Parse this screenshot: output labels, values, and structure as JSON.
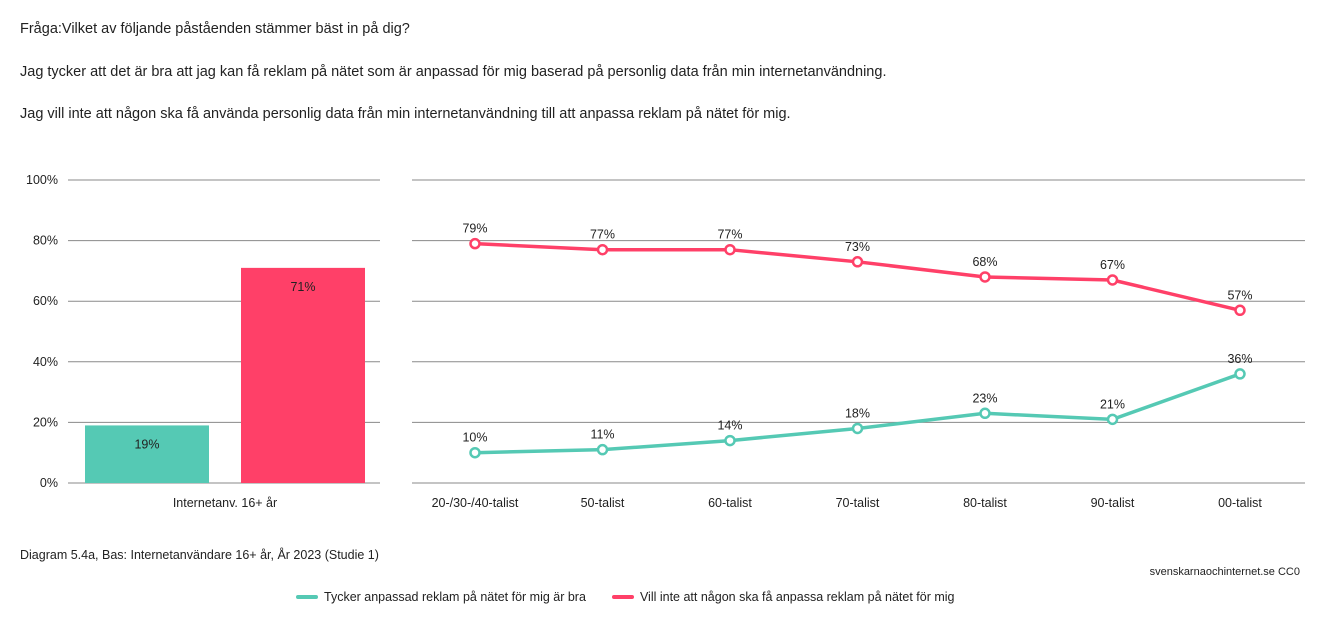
{
  "header": {
    "question": "Fråga:Vilket av följande påståenden stämmer bäst in på dig?",
    "statement1": "Jag tycker att det är bra att jag kan få reklam på nätet som är anpassad för mig baserad på personlig data från min internetanvändning.",
    "statement2": "Jag vill inte att någon ska få använda personlig data från min internetanvändning till att anpassa reklam på nätet för mig."
  },
  "footer": {
    "caption": "Diagram 5.4a, Bas: Internetanvändare 16+ år, År 2023 (Studie 1)",
    "source": "svenskarnaochinternet.se CC0"
  },
  "colors": {
    "teal": "#55c9b4",
    "pink": "#ff4068"
  },
  "chart_data": [
    {
      "type": "bar",
      "categories": [
        "Internetanv. 16+ år"
      ],
      "series": [
        {
          "name": "Tycker anpassad reklam på nätet för mig är bra",
          "values": [
            19
          ],
          "labels": [
            "19%"
          ]
        },
        {
          "name": "Vill inte att någon ska få anpassa reklam på nätet för mig",
          "values": [
            71
          ],
          "labels": [
            "71%"
          ]
        }
      ],
      "ylim": [
        0,
        100
      ],
      "yticks": [
        "0%",
        "20%",
        "40%",
        "60%",
        "80%",
        "100%"
      ],
      "grid": true
    },
    {
      "type": "line",
      "categories": [
        "20-/30-/40-talist",
        "50-talist",
        "60-talist",
        "70-talist",
        "80-talist",
        "90-talist",
        "00-talist"
      ],
      "series": [
        {
          "name": "Tycker anpassad reklam på nätet för mig är bra",
          "values": [
            10,
            11,
            14,
            18,
            23,
            21,
            36
          ],
          "labels": [
            "10%",
            "11%",
            "14%",
            "18%",
            "23%",
            "21%",
            "36%"
          ]
        },
        {
          "name": "Vill inte att någon ska få anpassa reklam på nätet för mig",
          "values": [
            79,
            77,
            77,
            73,
            68,
            67,
            57
          ],
          "labels": [
            "79%",
            "77%",
            "77%",
            "73%",
            "68%",
            "67%",
            "57%"
          ]
        }
      ],
      "ylim": [
        0,
        100
      ],
      "grid": true,
      "legend": "bottom"
    }
  ]
}
